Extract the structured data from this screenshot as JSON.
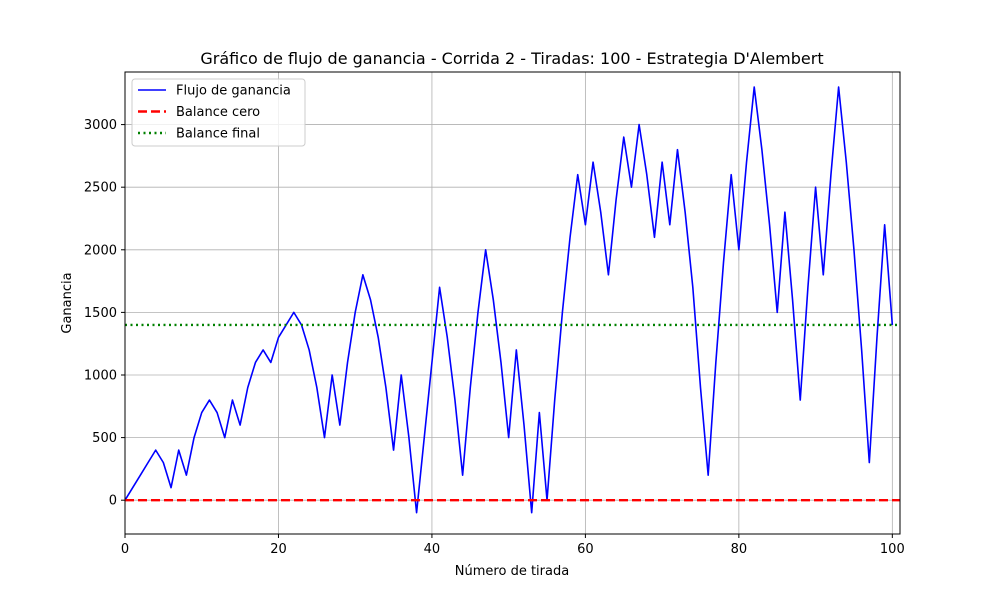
{
  "chart_data": {
    "type": "line",
    "title": "Gráfico de flujo de ganancia - Corrida 2 - Tiradas: 100 - Estrategia D'Alembert",
    "xlabel": "Número de tirada",
    "ylabel": "Ganancia",
    "xlim": [
      0,
      101
    ],
    "ylim": [
      -270,
      3420
    ],
    "xticks": [
      0,
      20,
      40,
      60,
      80,
      100
    ],
    "yticks": [
      0,
      500,
      1000,
      1500,
      2000,
      2500,
      3000
    ],
    "grid": true,
    "legend_position": "top-left",
    "series": [
      {
        "name": "Flujo de ganancia",
        "color": "#0000ff",
        "style": "solid",
        "x": [
          0,
          1,
          2,
          3,
          4,
          5,
          6,
          7,
          8,
          9,
          10,
          11,
          12,
          13,
          14,
          15,
          16,
          17,
          18,
          19,
          20,
          21,
          22,
          23,
          24,
          25,
          26,
          27,
          28,
          29,
          30,
          31,
          32,
          33,
          34,
          35,
          36,
          37,
          38,
          39,
          40,
          41,
          42,
          43,
          44,
          45,
          46,
          47,
          48,
          49,
          50,
          51,
          52,
          53,
          54,
          55,
          56,
          57,
          58,
          59,
          60,
          61,
          62,
          63,
          64,
          65,
          66,
          67,
          68,
          69,
          70,
          71,
          72,
          73,
          74,
          75,
          76,
          77,
          78,
          79,
          80,
          81,
          82,
          83,
          84,
          85,
          86,
          87,
          88,
          89,
          90,
          91,
          92,
          93,
          94,
          95,
          96,
          97,
          98,
          99,
          100
        ],
        "y": [
          0,
          100,
          200,
          300,
          400,
          300,
          100,
          400,
          200,
          500,
          700,
          800,
          700,
          500,
          800,
          600,
          900,
          1100,
          1200,
          1100,
          1300,
          1400,
          1500,
          1400,
          1200,
          900,
          500,
          1000,
          600,
          1100,
          1500,
          1800,
          1600,
          1300,
          900,
          400,
          1000,
          500,
          -100,
          500,
          1100,
          1700,
          1300,
          800,
          200,
          900,
          1500,
          2000,
          1600,
          1100,
          500,
          1200,
          600,
          -100,
          700,
          0,
          800,
          1500,
          2100,
          2600,
          2200,
          2700,
          2300,
          1800,
          2400,
          2900,
          2500,
          3000,
          2600,
          2100,
          2700,
          2200,
          2800,
          2300,
          1700,
          900,
          200,
          1100,
          1900,
          2600,
          2000,
          2700,
          3300,
          2800,
          2200,
          1500,
          2300,
          1600,
          800,
          1700,
          2500,
          1800,
          2600,
          3300,
          2700,
          2000,
          1200,
          300,
          1300,
          2200,
          1400
        ]
      },
      {
        "name": "Balance cero",
        "color": "#ff0000",
        "style": "dashed",
        "y_constant": 0
      },
      {
        "name": "Balance final",
        "color": "#008000",
        "style": "dotted",
        "y_constant": 1400
      }
    ]
  }
}
